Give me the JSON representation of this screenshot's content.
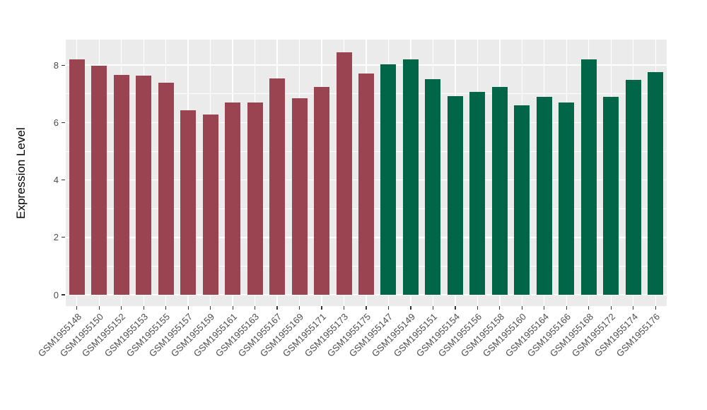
{
  "chart_data": {
    "type": "bar",
    "title": "",
    "xlabel": "",
    "ylabel": "Expression Level",
    "ylim": [
      0,
      8.89
    ],
    "yticks_major": [
      0,
      2,
      4,
      6,
      8
    ],
    "yticks_minor": [
      1,
      3,
      5,
      7
    ],
    "grid": true,
    "legend": false,
    "categories": [
      "GSM1955148",
      "GSM1955150",
      "GSM1955152",
      "GSM1955153",
      "GSM1955155",
      "GSM1955157",
      "GSM1955159",
      "GSM1955161",
      "GSM1955163",
      "GSM1955167",
      "GSM1955169",
      "GSM1955171",
      "GSM1955173",
      "GSM1955175",
      "GSM1955147",
      "GSM1955149",
      "GSM1955151",
      "GSM1955154",
      "GSM1955156",
      "GSM1955158",
      "GSM1955160",
      "GSM1955164",
      "GSM1955166",
      "GSM1955168",
      "GSM1955172",
      "GSM1955174",
      "GSM1955176"
    ],
    "values": [
      8.2,
      7.99,
      7.65,
      7.63,
      7.38,
      6.43,
      6.29,
      6.69,
      6.7,
      7.54,
      6.85,
      7.23,
      8.45,
      7.7,
      8.03,
      8.21,
      7.52,
      6.91,
      7.08,
      7.23,
      6.59,
      6.9,
      6.7,
      8.21,
      6.9,
      7.49,
      7.75
    ],
    "bar_group": [
      "maroon",
      "maroon",
      "maroon",
      "maroon",
      "maroon",
      "maroon",
      "maroon",
      "maroon",
      "maroon",
      "maroon",
      "maroon",
      "maroon",
      "maroon",
      "maroon",
      "green",
      "green",
      "green",
      "green",
      "green",
      "green",
      "green",
      "green",
      "green",
      "green",
      "green",
      "green",
      "green"
    ],
    "groups": {
      "maroon": {
        "color": "#9A4452"
      },
      "green": {
        "color": "#006647"
      }
    },
    "colors": {
      "panel_background": "#EBEBEB",
      "gridline": "#FFFFFF",
      "axis_text": "#4D4D4D",
      "axis_title": "#000000",
      "page_background": "#FFFFFF"
    }
  }
}
